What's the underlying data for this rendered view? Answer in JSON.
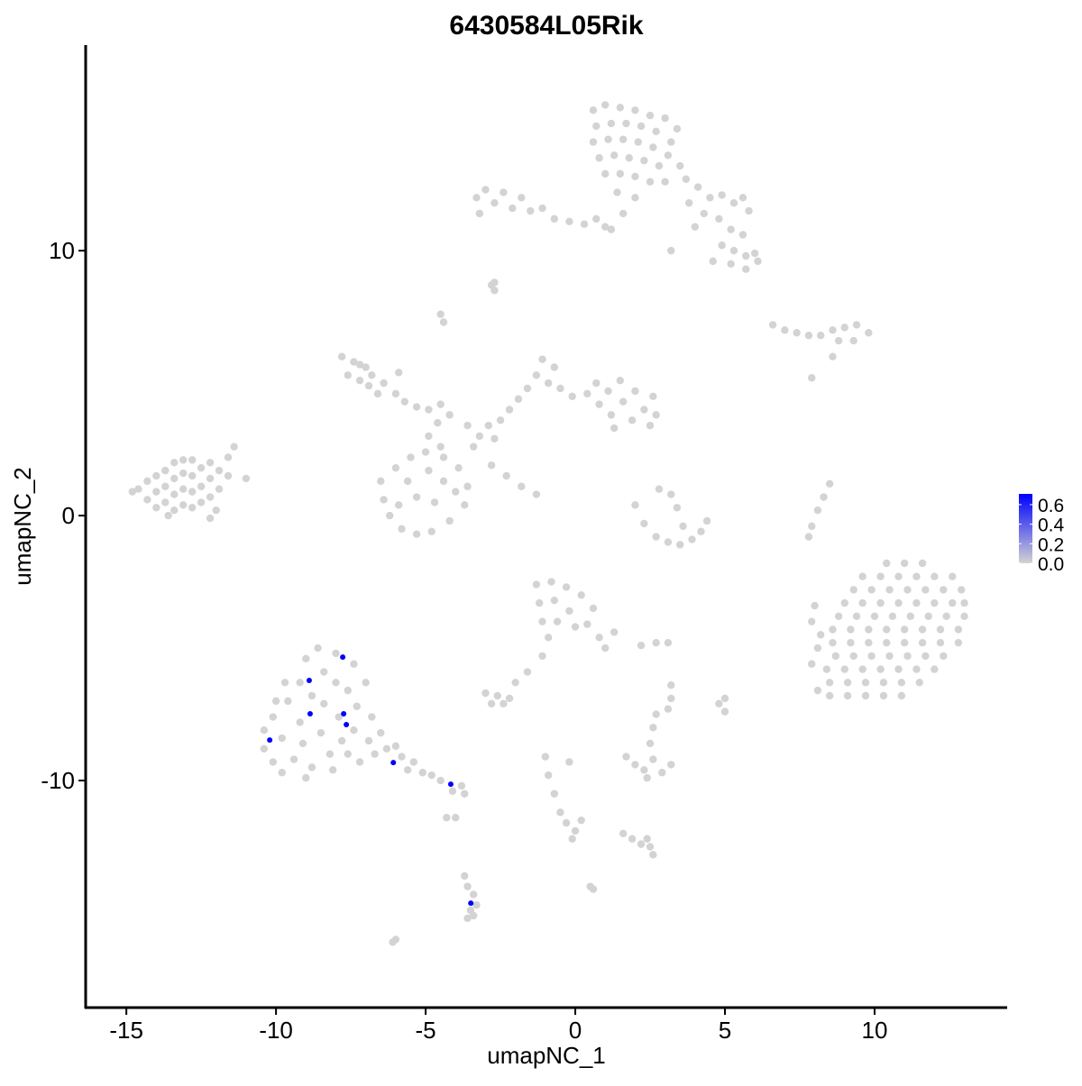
{
  "chart_data": {
    "type": "scatter",
    "title": "6430584L05Rik",
    "xlabel": "umapNC_1",
    "ylabel": "umapNC_2",
    "xlim": [
      -16.36,
      14.43
    ],
    "ylim": [
      -18.57,
      17.76
    ],
    "xticks": [
      -15,
      -10,
      -5,
      0,
      5,
      10
    ],
    "yticks": [
      -10,
      0,
      10
    ],
    "grid": false,
    "colors": {
      "low": "#D3D3D3",
      "high": "#0000FF"
    },
    "legend": {
      "position": "right",
      "ticks": [
        0.0,
        0.2,
        0.4,
        0.6
      ],
      "range": [
        0,
        0.71
      ]
    },
    "expressing_points": [
      {
        "x": -7.77,
        "y": -5.34,
        "value": 0.69
      },
      {
        "x": -8.89,
        "y": -6.22,
        "value": 0.69
      },
      {
        "x": -8.86,
        "y": -7.48,
        "value": 0.69
      },
      {
        "x": -7.74,
        "y": -7.48,
        "value": 0.69
      },
      {
        "x": -7.65,
        "y": -7.89,
        "value": 0.69
      },
      {
        "x": -10.21,
        "y": -8.47,
        "value": 0.69
      },
      {
        "x": -6.08,
        "y": -9.32,
        "value": 0.69
      },
      {
        "x": -4.16,
        "y": -10.14,
        "value": 0.69
      },
      {
        "x": -3.49,
        "y": -14.63,
        "value": 0.69
      }
    ],
    "zero_points": [
      [
        -14.6,
        1.0
      ],
      [
        -14.3,
        0.6
      ],
      [
        -14.3,
        1.3
      ],
      [
        -14,
        0.3
      ],
      [
        -14,
        0.9
      ],
      [
        -14,
        1.5
      ],
      [
        -13.7,
        0.5
      ],
      [
        -13.7,
        1.1
      ],
      [
        -13.7,
        1.7
      ],
      [
        -13.4,
        0.2
      ],
      [
        -13.4,
        0.8
      ],
      [
        -13.4,
        1.4
      ],
      [
        -13.4,
        2.0
      ],
      [
        -13.1,
        0.4
      ],
      [
        -13.1,
        1.0
      ],
      [
        -13.1,
        1.6
      ],
      [
        -13.1,
        2.1
      ],
      [
        -12.8,
        0.3
      ],
      [
        -12.8,
        0.9
      ],
      [
        -12.8,
        1.5
      ],
      [
        -12.8,
        2.1
      ],
      [
        -12.5,
        0.5
      ],
      [
        -12.5,
        1.1
      ],
      [
        -12.5,
        1.8
      ],
      [
        -12.2,
        0.7
      ],
      [
        -12.2,
        1.4
      ],
      [
        -12.2,
        2.0
      ],
      [
        -11.9,
        1.0
      ],
      [
        -11.9,
        1.7
      ],
      [
        -11.6,
        1.5
      ],
      [
        -11.6,
        2.2
      ],
      [
        -11.4,
        2.6
      ],
      [
        -11.0,
        1.4
      ],
      [
        -12.0,
        0.2
      ],
      [
        -14.8,
        0.9
      ],
      [
        -13.6,
        0.0
      ],
      [
        -12.2,
        -0.1
      ],
      [
        -7.8,
        6.0
      ],
      [
        -7.4,
        5.8
      ],
      [
        -7.0,
        5.6
      ],
      [
        -7.6,
        5.3
      ],
      [
        -7.2,
        5.1
      ],
      [
        -6.8,
        5.3
      ],
      [
        -6.4,
        5.0
      ],
      [
        -6.6,
        4.6
      ],
      [
        -6.0,
        4.6
      ],
      [
        -5.7,
        4.3
      ],
      [
        -5.3,
        4.1
      ],
      [
        -4.9,
        4.0
      ],
      [
        -4.5,
        4.2
      ],
      [
        -4.2,
        3.8
      ],
      [
        -4.6,
        3.5
      ],
      [
        -4.9,
        3.0
      ],
      [
        -4.5,
        2.6
      ],
      [
        -7.2,
        5.7
      ],
      [
        -6.9,
        4.9
      ],
      [
        -5.9,
        5.4
      ],
      [
        -6.5,
        1.3
      ],
      [
        -6.4,
        0.6
      ],
      [
        -6.2,
        0.0
      ],
      [
        -6.0,
        1.8
      ],
      [
        -5.8,
        -0.5
      ],
      [
        -5.5,
        2.2
      ],
      [
        -5.3,
        -0.7
      ],
      [
        -5.0,
        2.4
      ],
      [
        -4.8,
        -0.6
      ],
      [
        -4.4,
        2.2
      ],
      [
        -4.2,
        -0.2
      ],
      [
        -3.9,
        1.8
      ],
      [
        -3.7,
        0.4
      ],
      [
        -3.6,
        1.1
      ],
      [
        -4.4,
        1.3
      ],
      [
        -4.7,
        0.5
      ],
      [
        -5.3,
        0.7
      ],
      [
        -5.6,
        1.3
      ],
      [
        -4.9,
        1.7
      ],
      [
        -4.0,
        0.9
      ],
      [
        -5.9,
        0.4
      ],
      [
        -3.6,
        3.4
      ],
      [
        -3.2,
        3.0
      ],
      [
        -2.9,
        3.4
      ],
      [
        -2.5,
        3.6
      ],
      [
        -2.2,
        4.0
      ],
      [
        -1.9,
        4.4
      ],
      [
        -1.6,
        4.8
      ],
      [
        -1.3,
        5.3
      ],
      [
        -1.1,
        5.9
      ],
      [
        -0.7,
        5.6
      ],
      [
        -0.9,
        5.0
      ],
      [
        -0.5,
        4.8
      ],
      [
        -0.1,
        4.5
      ],
      [
        -3.4,
        2.6
      ],
      [
        -2.7,
        2.9
      ],
      [
        0.4,
        4.6
      ],
      [
        0.7,
        5.0
      ],
      [
        0.8,
        4.2
      ],
      [
        1.1,
        4.7
      ],
      [
        1.2,
        3.8
      ],
      [
        1.5,
        5.1
      ],
      [
        1.6,
        4.3
      ],
      [
        1.9,
        3.6
      ],
      [
        2.0,
        4.7
      ],
      [
        2.3,
        4.0
      ],
      [
        2.5,
        3.4
      ],
      [
        2.6,
        4.5
      ],
      [
        2.7,
        3.8
      ],
      [
        1.3,
        3.3
      ],
      [
        -2.8,
        1.9
      ],
      [
        -2.3,
        1.5
      ],
      [
        -1.8,
        1.1
      ],
      [
        -1.3,
        0.8
      ],
      [
        -4.5,
        7.6
      ],
      [
        -4.4,
        7.3
      ],
      [
        -2.8,
        8.7
      ],
      [
        -2.7,
        8.5
      ],
      [
        -3.3,
        12.0
      ],
      [
        -3.0,
        12.3
      ],
      [
        -2.7,
        11.8
      ],
      [
        -2.4,
        12.2
      ],
      [
        -2.1,
        11.6
      ],
      [
        -1.8,
        12.0
      ],
      [
        -1.5,
        11.5
      ],
      [
        -1.1,
        11.6
      ],
      [
        -0.7,
        11.2
      ],
      [
        -3.2,
        11.4
      ],
      [
        -0.2,
        11.1
      ],
      [
        0.3,
        11.0
      ],
      [
        0.7,
        11.2
      ],
      [
        1.0,
        10.9
      ],
      [
        0.6,
        15.3
      ],
      [
        1.0,
        15.5
      ],
      [
        1.5,
        15.4
      ],
      [
        2.0,
        15.3
      ],
      [
        2.5,
        15.1
      ],
      [
        3.0,
        15.0
      ],
      [
        3.4,
        14.6
      ],
      [
        0.7,
        14.7
      ],
      [
        1.2,
        14.8
      ],
      [
        1.7,
        14.8
      ],
      [
        2.2,
        14.7
      ],
      [
        2.7,
        14.5
      ],
      [
        3.2,
        14.1
      ],
      [
        0.6,
        14.1
      ],
      [
        1.1,
        14.2
      ],
      [
        1.6,
        14.2
      ],
      [
        2.1,
        14.1
      ],
      [
        2.6,
        13.9
      ],
      [
        3.1,
        13.6
      ],
      [
        0.8,
        13.5
      ],
      [
        1.3,
        13.6
      ],
      [
        1.8,
        13.5
      ],
      [
        2.3,
        13.4
      ],
      [
        2.8,
        13.2
      ],
      [
        3.5,
        13.2
      ],
      [
        1.0,
        12.9
      ],
      [
        1.5,
        12.9
      ],
      [
        2.0,
        12.8
      ],
      [
        2.5,
        12.6
      ],
      [
        3.0,
        12.6
      ],
      [
        1.4,
        12.2
      ],
      [
        2.0,
        12.0
      ],
      [
        1.6,
        11.4
      ],
      [
        1.2,
        10.8
      ],
      [
        3.7,
        12.7
      ],
      [
        4.1,
        12.4
      ],
      [
        4.5,
        12.0
      ],
      [
        4.9,
        12.1
      ],
      [
        5.3,
        11.8
      ],
      [
        5.6,
        12.0
      ],
      [
        5.8,
        11.5
      ],
      [
        4.3,
        11.4
      ],
      [
        4.8,
        11.2
      ],
      [
        5.2,
        10.8
      ],
      [
        5.6,
        10.6
      ],
      [
        3.8,
        11.8
      ],
      [
        4.0,
        10.9
      ],
      [
        3.2,
        10.0
      ],
      [
        4.9,
        10.2
      ],
      [
        5.3,
        10.0
      ],
      [
        5.7,
        9.8
      ],
      [
        6.1,
        9.6
      ],
      [
        5.2,
        9.5
      ],
      [
        5.7,
        9.3
      ],
      [
        6.0,
        9.9
      ],
      [
        4.6,
        9.6
      ],
      [
        -2.7,
        8.8
      ],
      [
        6.6,
        7.2
      ],
      [
        7.0,
        7.0
      ],
      [
        7.4,
        6.9
      ],
      [
        7.8,
        6.8
      ],
      [
        8.2,
        6.8
      ],
      [
        8.6,
        7.0
      ],
      [
        9.0,
        7.1
      ],
      [
        9.4,
        7.2
      ],
      [
        9.8,
        6.9
      ],
      [
        8.8,
        6.6
      ],
      [
        9.3,
        6.6
      ],
      [
        8.6,
        6.0
      ],
      [
        7.9,
        5.2
      ],
      [
        2.0,
        0.4
      ],
      [
        2.3,
        -0.3
      ],
      [
        2.7,
        -0.8
      ],
      [
        3.1,
        -1.0
      ],
      [
        3.5,
        -1.1
      ],
      [
        3.9,
        -0.9
      ],
      [
        4.2,
        -0.6
      ],
      [
        4.4,
        -0.2
      ],
      [
        3.2,
        0.8
      ],
      [
        3.4,
        0.3
      ],
      [
        2.8,
        1.0
      ],
      [
        3.6,
        -0.4
      ],
      [
        8.5,
        1.2
      ],
      [
        8.3,
        0.7
      ],
      [
        8.1,
        0.2
      ],
      [
        7.9,
        -0.4
      ],
      [
        7.8,
        -0.8
      ],
      [
        -1.3,
        -2.6
      ],
      [
        -0.8,
        -2.5
      ],
      [
        -0.3,
        -2.7
      ],
      [
        0.2,
        -3.0
      ],
      [
        0.6,
        -3.5
      ],
      [
        -1.2,
        -3.3
      ],
      [
        -0.7,
        -3.2
      ],
      [
        -0.2,
        -3.6
      ],
      [
        0.4,
        -4.1
      ],
      [
        -1.1,
        -4.0
      ],
      [
        -0.6,
        -4.0
      ],
      [
        0.0,
        -4.2
      ],
      [
        0.8,
        -4.6
      ],
      [
        1.3,
        -4.4
      ],
      [
        1.0,
        -5.0
      ],
      [
        -0.9,
        -4.6
      ],
      [
        -1.1,
        -5.3
      ],
      [
        -1.6,
        -5.9
      ],
      [
        -2.0,
        -6.3
      ],
      [
        -3.0,
        -6.7
      ],
      [
        -2.6,
        -6.8
      ],
      [
        -2.2,
        -6.9
      ],
      [
        -2.8,
        -7.1
      ],
      [
        -2.4,
        -7.1
      ],
      [
        2.2,
        -4.9
      ],
      [
        2.7,
        -4.8
      ],
      [
        3.1,
        -4.8
      ],
      [
        -10.4,
        -8.1
      ],
      [
        -10.4,
        -8.8
      ],
      [
        -10.1,
        -9.3
      ],
      [
        -10.1,
        -7.6
      ],
      [
        -9.8,
        -9.7
      ],
      [
        -9.8,
        -8.4
      ],
      [
        -9.6,
        -7.0
      ],
      [
        -9.4,
        -9.2
      ],
      [
        -9.2,
        -6.3
      ],
      [
        -9.2,
        -7.8
      ],
      [
        -9.1,
        -8.6
      ],
      [
        -9.0,
        -5.4
      ],
      [
        -8.8,
        -9.5
      ],
      [
        -8.8,
        -6.8
      ],
      [
        -8.6,
        -5.0
      ],
      [
        -8.5,
        -8.2
      ],
      [
        -8.4,
        -5.9
      ],
      [
        -8.4,
        -7.1
      ],
      [
        -8.2,
        -9.0
      ],
      [
        -8.0,
        -6.3
      ],
      [
        -8.0,
        -5.2
      ],
      [
        -7.9,
        -7.6
      ],
      [
        -7.8,
        -8.5
      ],
      [
        -7.6,
        -6.6
      ],
      [
        -7.4,
        -5.6
      ],
      [
        -7.4,
        -8.1
      ],
      [
        -7.3,
        -7.2
      ],
      [
        -7.2,
        -9.3
      ],
      [
        -7.0,
        -6.3
      ],
      [
        -6.9,
        -8.5
      ],
      [
        -6.8,
        -7.6
      ],
      [
        -6.5,
        -8.2
      ],
      [
        -6.3,
        -8.8
      ],
      [
        -6.0,
        -8.7
      ],
      [
        -5.8,
        -9.1
      ],
      [
        -5.6,
        -9.6
      ],
      [
        -5.4,
        -9.3
      ],
      [
        -5.1,
        -9.7
      ],
      [
        -4.8,
        -9.8
      ],
      [
        -4.5,
        -10.0
      ],
      [
        -4.1,
        -10.4
      ],
      [
        -3.8,
        -10.2
      ],
      [
        -3.7,
        -10.5
      ],
      [
        -9.7,
        -6.3
      ],
      [
        -10.0,
        -7.0
      ],
      [
        -9.0,
        -9.9
      ],
      [
        -8.1,
        -9.6
      ],
      [
        -7.6,
        -9.0
      ],
      [
        -6.7,
        -9.0
      ],
      [
        -4.3,
        -11.4
      ],
      [
        -4.0,
        -11.4
      ],
      [
        -3.7,
        -13.6
      ],
      [
        -3.6,
        -14.0
      ],
      [
        -3.4,
        -14.3
      ],
      [
        -3.5,
        -14.9
      ],
      [
        -3.3,
        -14.7
      ],
      [
        -3.6,
        -15.2
      ],
      [
        -3.4,
        -15.1
      ],
      [
        -6.1,
        -16.1
      ],
      [
        -6.0,
        -16.0
      ],
      [
        -1.0,
        -9.1
      ],
      [
        -0.9,
        -9.8
      ],
      [
        -0.7,
        -10.5
      ],
      [
        -0.5,
        -11.2
      ],
      [
        -0.3,
        -11.6
      ],
      [
        0.0,
        -11.9
      ],
      [
        0.2,
        -11.5
      ],
      [
        -0.1,
        -12.2
      ],
      [
        1.6,
        -12.0
      ],
      [
        1.9,
        -12.2
      ],
      [
        2.2,
        -12.4
      ],
      [
        2.5,
        -12.5
      ],
      [
        2.6,
        -12.8
      ],
      [
        2.4,
        -12.2
      ],
      [
        1.7,
        -9.1
      ],
      [
        2.0,
        -9.4
      ],
      [
        2.3,
        -9.6
      ],
      [
        2.6,
        -9.2
      ],
      [
        2.9,
        -9.7
      ],
      [
        3.2,
        -9.4
      ],
      [
        2.4,
        -9.9
      ],
      [
        2.5,
        -8.6
      ],
      [
        2.6,
        -8.0
      ],
      [
        2.7,
        -7.5
      ],
      [
        3.2,
        -6.4
      ],
      [
        3.2,
        -6.9
      ],
      [
        3.1,
        -7.3
      ],
      [
        4.8,
        -7.1
      ],
      [
        5.0,
        -6.9
      ],
      [
        5.0,
        -7.4
      ],
      [
        0.5,
        -14.0
      ],
      [
        0.6,
        -14.1
      ],
      [
        -0.2,
        -9.3
      ],
      [
        10.4,
        -1.8
      ],
      [
        11.0,
        -1.8
      ],
      [
        11.6,
        -1.8
      ],
      [
        9.6,
        -2.3
      ],
      [
        10.2,
        -2.3
      ],
      [
        10.8,
        -2.3
      ],
      [
        11.4,
        -2.3
      ],
      [
        12.0,
        -2.3
      ],
      [
        12.6,
        -2.3
      ],
      [
        9.3,
        -2.8
      ],
      [
        9.9,
        -2.8
      ],
      [
        10.5,
        -2.8
      ],
      [
        11.1,
        -2.8
      ],
      [
        11.7,
        -2.8
      ],
      [
        12.3,
        -2.8
      ],
      [
        12.9,
        -2.8
      ],
      [
        9.0,
        -3.3
      ],
      [
        9.6,
        -3.3
      ],
      [
        10.2,
        -3.3
      ],
      [
        10.8,
        -3.3
      ],
      [
        11.4,
        -3.3
      ],
      [
        12.0,
        -3.3
      ],
      [
        12.6,
        -3.3
      ],
      [
        13.0,
        -3.3
      ],
      [
        8.8,
        -3.8
      ],
      [
        9.4,
        -3.8
      ],
      [
        10.0,
        -3.8
      ],
      [
        10.6,
        -3.8
      ],
      [
        11.2,
        -3.8
      ],
      [
        11.8,
        -3.8
      ],
      [
        12.4,
        -3.8
      ],
      [
        13.0,
        -3.8
      ],
      [
        8.6,
        -4.3
      ],
      [
        9.2,
        -4.3
      ],
      [
        9.8,
        -4.3
      ],
      [
        10.4,
        -4.3
      ],
      [
        11.0,
        -4.3
      ],
      [
        11.6,
        -4.3
      ],
      [
        12.2,
        -4.3
      ],
      [
        12.8,
        -4.3
      ],
      [
        8.6,
        -4.8
      ],
      [
        9.2,
        -4.8
      ],
      [
        9.8,
        -4.8
      ],
      [
        10.4,
        -4.8
      ],
      [
        11.0,
        -4.8
      ],
      [
        11.6,
        -4.8
      ],
      [
        12.2,
        -4.8
      ],
      [
        12.8,
        -4.8
      ],
      [
        8.7,
        -5.3
      ],
      [
        9.3,
        -5.3
      ],
      [
        9.9,
        -5.3
      ],
      [
        10.5,
        -5.3
      ],
      [
        11.1,
        -5.3
      ],
      [
        11.7,
        -5.3
      ],
      [
        12.3,
        -5.3
      ],
      [
        8.4,
        -5.8
      ],
      [
        9.0,
        -5.8
      ],
      [
        9.6,
        -5.8
      ],
      [
        10.2,
        -5.8
      ],
      [
        10.8,
        -5.8
      ],
      [
        11.4,
        -5.8
      ],
      [
        12.0,
        -5.8
      ],
      [
        8.5,
        -6.3
      ],
      [
        9.1,
        -6.3
      ],
      [
        9.7,
        -6.3
      ],
      [
        10.3,
        -6.3
      ],
      [
        10.9,
        -6.3
      ],
      [
        11.5,
        -6.3
      ],
      [
        8.5,
        -6.8
      ],
      [
        9.1,
        -6.8
      ],
      [
        9.7,
        -6.8
      ],
      [
        10.3,
        -6.8
      ],
      [
        10.9,
        -6.8
      ],
      [
        7.9,
        -4.0
      ],
      [
        8.1,
        -5.0
      ],
      [
        8.2,
        -4.5
      ],
      [
        7.9,
        -5.6
      ],
      [
        8.1,
        -6.6
      ],
      [
        8.0,
        -3.4
      ]
    ]
  }
}
